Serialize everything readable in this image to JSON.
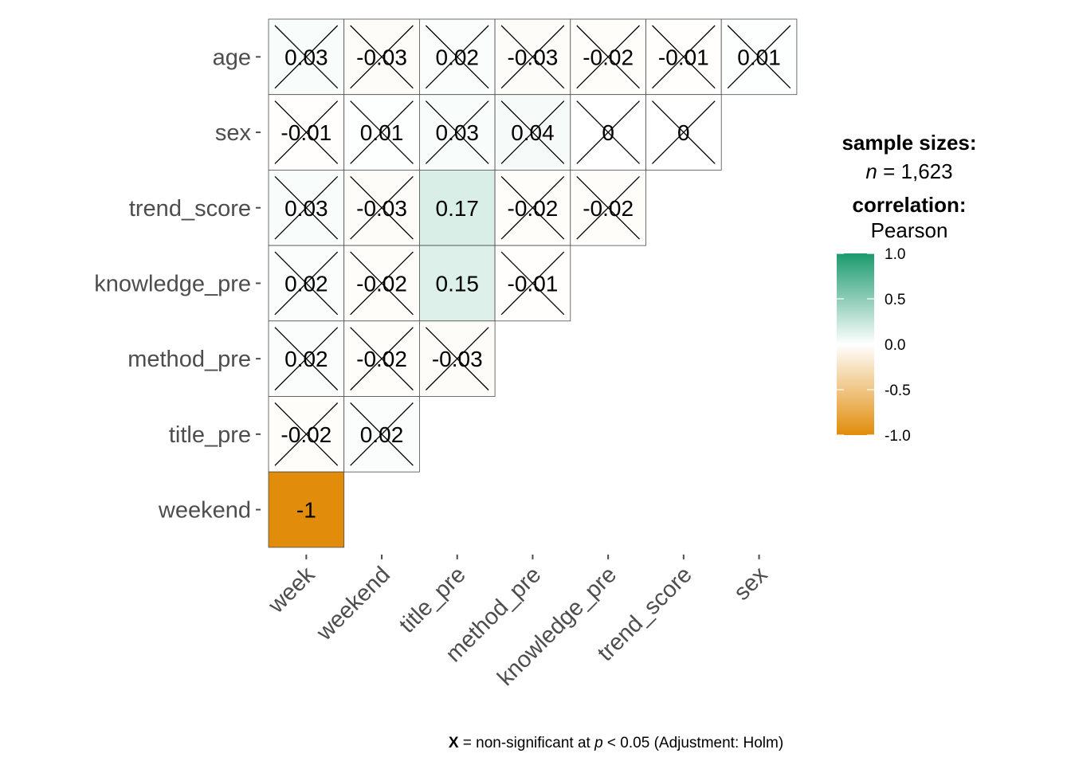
{
  "chart_data": {
    "type": "heatmap",
    "x_categories": [
      "week",
      "weekend",
      "title_pre",
      "method_pre",
      "knowledge_pre",
      "trend_score",
      "sex"
    ],
    "y_categories": [
      "age",
      "sex",
      "trend_score",
      "knowledge_pre",
      "method_pre",
      "title_pre",
      "weekend"
    ],
    "rows": [
      {
        "name": "age",
        "values": [
          0.03,
          -0.03,
          0.02,
          -0.03,
          -0.02,
          -0.01,
          0.01
        ],
        "labels": [
          "0.03",
          "-0.03",
          "0.02",
          "-0.03",
          "-0.02",
          "-0.01",
          "0.01"
        ],
        "nonsignificant": [
          true,
          true,
          true,
          true,
          true,
          true,
          true
        ]
      },
      {
        "name": "sex",
        "values": [
          -0.01,
          0.01,
          0.03,
          0.04,
          0,
          0
        ],
        "labels": [
          "-0.01",
          "0.01",
          "0.03",
          "0.04",
          "0",
          "0"
        ],
        "nonsignificant": [
          true,
          true,
          true,
          true,
          true,
          true
        ]
      },
      {
        "name": "trend_score",
        "values": [
          0.03,
          -0.03,
          0.17,
          -0.02,
          -0.02
        ],
        "labels": [
          "0.03",
          "-0.03",
          "0.17",
          "-0.02",
          "-0.02"
        ],
        "nonsignificant": [
          true,
          true,
          false,
          true,
          true
        ]
      },
      {
        "name": "knowledge_pre",
        "values": [
          0.02,
          -0.02,
          0.15,
          -0.01
        ],
        "labels": [
          "0.02",
          "-0.02",
          "0.15",
          "-0.01"
        ],
        "nonsignificant": [
          true,
          true,
          false,
          true
        ]
      },
      {
        "name": "method_pre",
        "values": [
          0.02,
          -0.02,
          -0.03
        ],
        "labels": [
          "0.02",
          "-0.02",
          "-0.03"
        ],
        "nonsignificant": [
          true,
          true,
          true
        ]
      },
      {
        "name": "title_pre",
        "values": [
          -0.02,
          0.02
        ],
        "labels": [
          "-0.02",
          "0.02"
        ],
        "nonsignificant": [
          true,
          true
        ]
      },
      {
        "name": "weekend",
        "values": [
          -1
        ],
        "labels": [
          "-1"
        ],
        "nonsignificant": [
          false
        ]
      }
    ],
    "color_scale": {
      "low": "#E18C0A",
      "mid": "#FFFFFF",
      "high": "#1B9A6E",
      "limits": [
        -1,
        1
      ]
    },
    "legend": {
      "sample_title": "sample sizes:",
      "sample_n_symbol": "n",
      "sample_n_value": " = 1,623",
      "correlation_title": "correlation:",
      "correlation_method": "Pearson",
      "ticks": [
        "1.0",
        "0.5",
        "0.0",
        "-0.5",
        "-1.0"
      ],
      "placement": "right"
    },
    "caption": {
      "mark": "X",
      "text1": " = non-significant at ",
      "p_symbol": "p",
      "text2": " < 0.05 (Adjustment: Holm)"
    }
  }
}
